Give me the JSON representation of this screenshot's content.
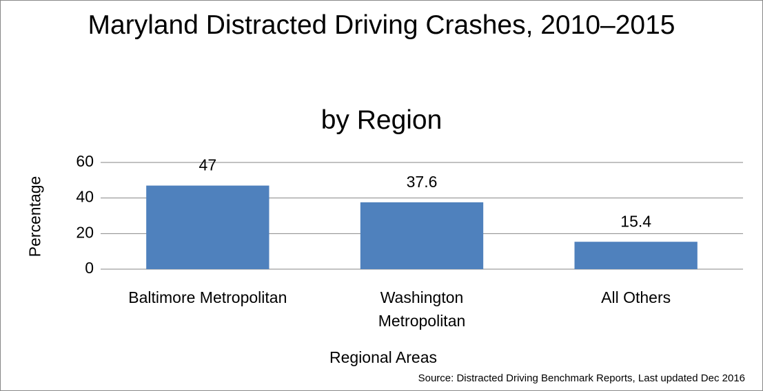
{
  "chart_data": {
    "type": "bar",
    "title": "Maryland Distracted Driving Crashes, 2010–2015",
    "subtitle": "by Region",
    "categories": [
      "Baltimore Metropolitan",
      "Washington Metropolitan",
      "All Others"
    ],
    "values": [
      47,
      37.6,
      15.4
    ],
    "color": "#4f81bd",
    "ylim": [
      0,
      60
    ],
    "yticks": [
      0,
      20,
      40,
      60
    ],
    "grid": true,
    "x_label": "Regional Areas",
    "y_label": "Percentage",
    "source": "Source: Distracted Driving Benchmark Reports, Last updated Dec 2016"
  }
}
